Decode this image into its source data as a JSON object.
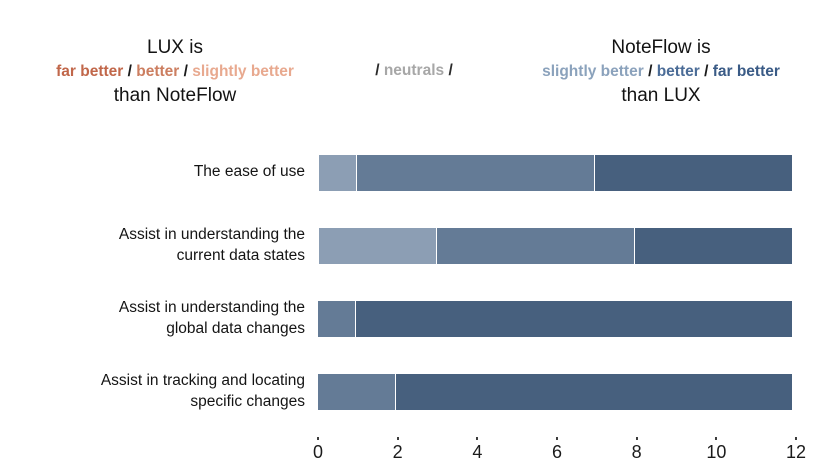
{
  "header": {
    "separator": "/",
    "left": {
      "line1": "LUX is",
      "line3": "than NoteFlow",
      "labels": [
        {
          "text": "far better",
          "color": "#c1674a"
        },
        {
          "text": "better",
          "color": "#cc7e60"
        },
        {
          "text": "slightly better",
          "color": "#e8a98f"
        }
      ]
    },
    "middle": {
      "text": "neutrals",
      "color": "#a7a7a7"
    },
    "right": {
      "line1": "NoteFlow is",
      "line3": "than LUX",
      "labels": [
        {
          "text": "slightly better",
          "color": "#8ba2bc"
        },
        {
          "text": "better",
          "color": "#4b6c97"
        },
        {
          "text": "far better",
          "color": "#3a5b86"
        }
      ]
    }
  },
  "rows": [
    {
      "line1": "The ease of use",
      "line2": ""
    },
    {
      "line1": "Assist in understanding the",
      "line2": "current data states"
    },
    {
      "line1": "Assist in understanding the",
      "line2": "global data changes"
    },
    {
      "line1": "Assist in tracking and locating",
      "line2": "specific changes"
    }
  ],
  "chart_data": {
    "type": "bar",
    "orientation": "horizontal",
    "stacked": true,
    "title": "",
    "xlabel": "",
    "ylabel": "",
    "categories": [
      "The ease of use",
      "Assist in understanding the current data states",
      "Assist in understanding the global data changes",
      "Assist in tracking and locating specific changes"
    ],
    "series": [
      {
        "name": "NoteFlow slightly better than LUX",
        "color": "#8c9eb4",
        "values": [
          1,
          3,
          0,
          0
        ]
      },
      {
        "name": "NoteFlow better than LUX",
        "color": "#647b96",
        "values": [
          6,
          5,
          1,
          2
        ]
      },
      {
        "name": "NoteFlow far better than LUX",
        "color": "#47607e",
        "values": [
          5,
          4,
          11,
          10
        ]
      }
    ],
    "lux_series_note": "no orange (LUX-favoring) or neutral segments are visible in any bar",
    "xlim": [
      0,
      12
    ],
    "xticks": [
      0,
      2,
      4,
      6,
      8,
      10,
      12
    ],
    "grid": false,
    "legend_position": "top"
  }
}
